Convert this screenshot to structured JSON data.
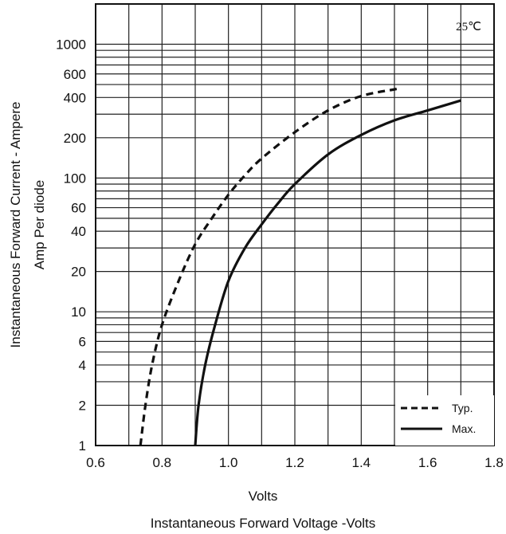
{
  "chart_data": {
    "type": "line",
    "title": "",
    "annotation": "25℃",
    "xlabel": "Volts",
    "xlabel2": "Instantaneous Forward Voltage -Volts",
    "ylabel_line1": "Instantaneous  Forward  Current - Ampere",
    "ylabel_line2": "Amp  Per diode",
    "xlim": [
      0.6,
      1.8
    ],
    "ylim": [
      1,
      2000
    ],
    "yscale": "log",
    "grid": true,
    "x_tick_labels": [
      "0.6",
      "0.8",
      "1.0",
      "1.2",
      "1.4",
      "1.6",
      "1.8"
    ],
    "y_ticks": [
      1,
      2,
      4,
      6,
      10,
      20,
      40,
      60,
      100,
      200,
      400,
      600,
      1000
    ],
    "y_tick_labels": [
      "1",
      "2",
      "4",
      "6",
      "10",
      "20",
      "40",
      "60",
      "100",
      "200",
      "400",
      "600",
      "1000"
    ],
    "legend_position": "bottom-right",
    "series": [
      {
        "name": "Typ.",
        "style": "dashed",
        "color": "#111111",
        "x": [
          0.735,
          0.75,
          0.77,
          0.8,
          0.85,
          0.9,
          0.95,
          1.0,
          1.05,
          1.1,
          1.2,
          1.3,
          1.4,
          1.5,
          1.52
        ],
        "y": [
          1,
          2,
          4,
          8,
          17,
          32,
          50,
          75,
          105,
          140,
          220,
          320,
          410,
          460,
          470
        ]
      },
      {
        "name": "Max.",
        "style": "solid",
        "color": "#111111",
        "x": [
          0.9,
          0.91,
          0.93,
          0.96,
          1.0,
          1.05,
          1.1,
          1.15,
          1.2,
          1.3,
          1.4,
          1.5,
          1.6,
          1.7
        ],
        "y": [
          1,
          2,
          4,
          8,
          17,
          30,
          45,
          65,
          90,
          150,
          210,
          270,
          320,
          380
        ]
      }
    ]
  }
}
